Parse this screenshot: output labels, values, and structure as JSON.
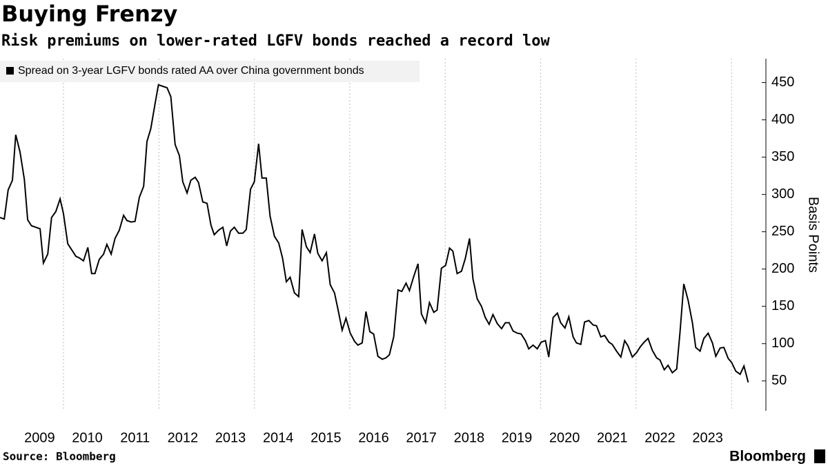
{
  "chart_data": {
    "type": "line",
    "title": "Buying Frenzy",
    "subtitle": "Risk premiums on lower-rated LGFV bonds reached a record low",
    "y_label": "Basis Points",
    "source": "Source: Bloomberg",
    "brand": "Bloomberg",
    "legend_position": "top-left",
    "x": [
      2008.67,
      2008.76,
      2008.84,
      2008.93,
      2009.0,
      2009.09,
      2009.18,
      2009.25,
      2009.33,
      2009.42,
      2009.51,
      2009.58,
      2009.67,
      2009.75,
      2009.84,
      2009.93,
      2010.0,
      2010.09,
      2010.17,
      2010.26,
      2010.33,
      2010.42,
      2010.51,
      2010.59,
      2010.66,
      2010.75,
      2010.84,
      2010.91,
      2011.0,
      2011.08,
      2011.17,
      2011.26,
      2011.33,
      2011.42,
      2011.5,
      2011.59,
      2011.68,
      2011.75,
      2011.83,
      2011.92,
      2011.99,
      2012.08,
      2012.17,
      2012.25,
      2012.34,
      2012.43,
      2012.5,
      2012.59,
      2012.67,
      2012.76,
      2012.83,
      2012.92,
      2013.01,
      2013.09,
      2013.16,
      2013.25,
      2013.34,
      2013.42,
      2013.5,
      2013.58,
      2013.67,
      2013.76,
      2013.83,
      2013.92,
      2014.0,
      2014.09,
      2014.16,
      2014.25,
      2014.33,
      2014.42,
      2014.51,
      2014.59,
      2014.67,
      2014.75,
      2014.84,
      2014.93,
      2015.0,
      2015.09,
      2015.17,
      2015.26,
      2015.33,
      2015.42,
      2015.51,
      2015.59,
      2015.68,
      2015.75,
      2015.84,
      2015.92,
      2016.01,
      2016.1,
      2016.17,
      2016.26,
      2016.34,
      2016.42,
      2016.5,
      2016.59,
      2016.68,
      2016.76,
      2016.83,
      2016.92,
      2017.01,
      2017.09,
      2017.18,
      2017.25,
      2017.34,
      2017.43,
      2017.5,
      2017.59,
      2017.67,
      2017.76,
      2017.83,
      2017.92,
      2018.01,
      2018.09,
      2018.16,
      2018.25,
      2018.34,
      2018.42,
      2018.51,
      2018.58,
      2018.67,
      2018.76,
      2018.84,
      2018.92,
      2019.0,
      2019.09,
      2019.18,
      2019.26,
      2019.34,
      2019.42,
      2019.51,
      2019.59,
      2019.68,
      2019.75,
      2019.84,
      2019.93,
      2020.01,
      2020.1,
      2020.17,
      2020.26,
      2020.35,
      2020.42,
      2020.51,
      2020.59,
      2020.68,
      2020.75,
      2020.84,
      2020.92,
      2021.01,
      2021.1,
      2021.17,
      2021.26,
      2021.34,
      2021.43,
      2021.5,
      2021.59,
      2021.68,
      2021.76,
      2021.83,
      2021.92,
      2022.01,
      2022.09,
      2022.17,
      2022.25,
      2022.34,
      2022.43,
      2022.5,
      2022.59,
      2022.67,
      2022.76,
      2022.85,
      2022.92,
      2023.0,
      2023.09,
      2023.18,
      2023.25,
      2023.34,
      2023.42,
      2023.51,
      2023.6,
      2023.67,
      2023.76,
      2023.84,
      2023.93,
      2024.0,
      2024.09,
      2024.18,
      2024.26,
      2024.35
    ],
    "series": [
      {
        "name": "Spread on 3-year LGFV bonds rated AA over China government bonds",
        "color": "#000000",
        "values": [
          269,
          267,
          306,
          319,
          380,
          357,
          320,
          266,
          258,
          256,
          254,
          208,
          220,
          269,
          277,
          294,
          274,
          234,
          226,
          217,
          215,
          211,
          229,
          194,
          194,
          213,
          220,
          233,
          220,
          241,
          252,
          272,
          265,
          263,
          264,
          296,
          311,
          371,
          388,
          422,
          447,
          445,
          443,
          431,
          367,
          352,
          317,
          302,
          319,
          323,
          316,
          290,
          288,
          259,
          246,
          252,
          256,
          231,
          251,
          256,
          248,
          248,
          253,
          307,
          317,
          368,
          322,
          322,
          271,
          244,
          235,
          215,
          183,
          189,
          168,
          163,
          253,
          230,
          222,
          247,
          221,
          211,
          222,
          179,
          168,
          147,
          118,
          134,
          114,
          103,
          98,
          101,
          143,
          116,
          113,
          83,
          79,
          81,
          85,
          109,
          172,
          170,
          181,
          171,
          190,
          207,
          140,
          128,
          155,
          142,
          145,
          201,
          205,
          228,
          224,
          194,
          197,
          214,
          241,
          187,
          160,
          150,
          135,
          126,
          139,
          127,
          120,
          128,
          128,
          117,
          114,
          113,
          104,
          93,
          98,
          93,
          102,
          104,
          82,
          135,
          141,
          128,
          121,
          136,
          109,
          101,
          99,
          129,
          131,
          125,
          124,
          109,
          111,
          102,
          99,
          90,
          82,
          104,
          97,
          82,
          88,
          96,
          102,
          107,
          91,
          81,
          78,
          65,
          71,
          61,
          66,
          115,
          180,
          158,
          128,
          95,
          90,
          107,
          114,
          101,
          83,
          94,
          95,
          80,
          75,
          63,
          59,
          70,
          48
        ]
      }
    ],
    "xlim": [
      2008.67,
      2024.72
    ],
    "xticks": [
      {
        "value": 2009.5,
        "label": "2009"
      },
      {
        "value": 2010.5,
        "label": "2010"
      },
      {
        "value": 2011.5,
        "label": "2011"
      },
      {
        "value": 2012.5,
        "label": "2012"
      },
      {
        "value": 2013.5,
        "label": "2013"
      },
      {
        "value": 2014.5,
        "label": "2014"
      },
      {
        "value": 2015.5,
        "label": "2015"
      },
      {
        "value": 2016.5,
        "label": "2016"
      },
      {
        "value": 2017.5,
        "label": "2017"
      },
      {
        "value": 2018.5,
        "label": "2018"
      },
      {
        "value": 2019.5,
        "label": "2019"
      },
      {
        "value": 2020.5,
        "label": "2020"
      },
      {
        "value": 2021.5,
        "label": "2021"
      },
      {
        "value": 2022.5,
        "label": "2022"
      },
      {
        "value": 2023.5,
        "label": "2023"
      }
    ],
    "xgrid": [
      2010,
      2012,
      2014,
      2016,
      2018,
      2020,
      2022,
      2024
    ],
    "ylim": [
      10,
      482
    ],
    "yticks": [
      50,
      100,
      150,
      200,
      250,
      300,
      350,
      400,
      450
    ]
  }
}
